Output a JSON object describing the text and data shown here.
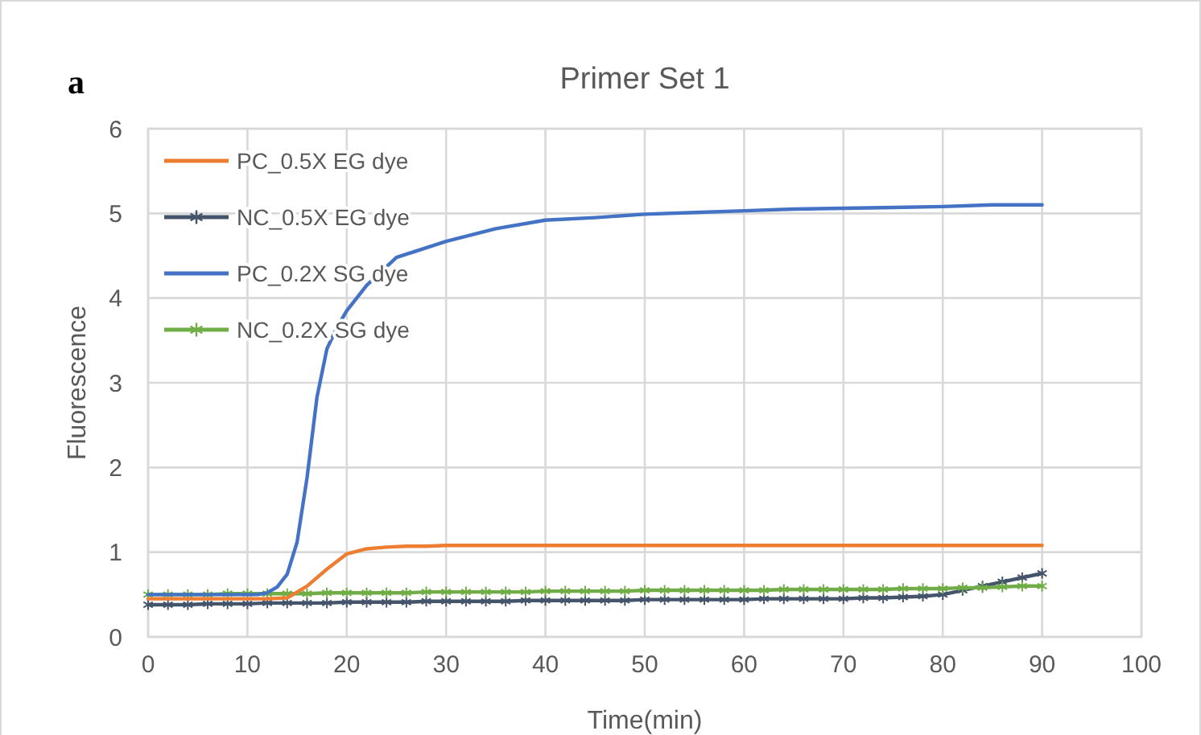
{
  "chart_data": {
    "type": "line",
    "title": "Primer Set 1",
    "xlabel": "Time(min)",
    "ylabel": "Fluorescence",
    "annotations": [
      "a"
    ],
    "x": [
      0,
      2,
      4,
      6,
      8,
      10,
      12,
      14,
      16,
      18,
      20,
      22,
      24,
      26,
      28,
      30,
      32,
      34,
      36,
      38,
      40,
      42,
      44,
      46,
      48,
      50,
      52,
      54,
      56,
      58,
      60,
      62,
      64,
      66,
      68,
      70,
      72,
      74,
      76,
      78,
      80,
      82,
      84,
      86,
      88,
      90
    ],
    "series": [
      {
        "name": "PC_0.5X EG dye",
        "color": "#ed7d31",
        "marker": "none",
        "values": [
          0.45,
          0.45,
          0.45,
          0.45,
          0.45,
          0.45,
          0.45,
          0.46,
          0.6,
          0.8,
          0.98,
          1.04,
          1.06,
          1.07,
          1.07,
          1.08,
          1.08,
          1.08,
          1.08,
          1.08,
          1.08,
          1.08,
          1.08,
          1.08,
          1.08,
          1.08,
          1.08,
          1.08,
          1.08,
          1.08,
          1.08,
          1.08,
          1.08,
          1.08,
          1.08,
          1.08,
          1.08,
          1.08,
          1.08,
          1.08,
          1.08,
          1.08,
          1.08,
          1.08,
          1.08,
          1.08
        ]
      },
      {
        "name": "NC_0.5X EG dye",
        "color": "#44546a",
        "marker": "cross",
        "values": [
          0.38,
          0.38,
          0.38,
          0.39,
          0.39,
          0.39,
          0.4,
          0.4,
          0.4,
          0.4,
          0.41,
          0.41,
          0.41,
          0.41,
          0.42,
          0.42,
          0.42,
          0.42,
          0.42,
          0.43,
          0.43,
          0.43,
          0.43,
          0.43,
          0.43,
          0.44,
          0.44,
          0.44,
          0.44,
          0.44,
          0.44,
          0.45,
          0.45,
          0.45,
          0.45,
          0.45,
          0.46,
          0.46,
          0.47,
          0.48,
          0.5,
          0.55,
          0.6,
          0.65,
          0.7,
          0.75
        ]
      },
      {
        "name": "PC_0.2X SG dye",
        "color": "#4472c4",
        "marker": "none",
        "x": [
          0,
          2,
          4,
          6,
          8,
          10,
          11,
          12,
          13,
          14,
          15,
          16,
          17,
          18,
          19,
          20,
          22,
          25,
          30,
          35,
          40,
          45,
          50,
          55,
          60,
          65,
          70,
          75,
          80,
          85,
          90
        ],
        "values": [
          0.5,
          0.5,
          0.5,
          0.5,
          0.5,
          0.5,
          0.5,
          0.52,
          0.59,
          0.74,
          1.12,
          1.88,
          2.83,
          3.4,
          3.65,
          3.85,
          4.15,
          4.48,
          4.67,
          4.82,
          4.92,
          4.95,
          4.99,
          5.01,
          5.03,
          5.05,
          5.06,
          5.07,
          5.08,
          5.1,
          5.1
        ]
      },
      {
        "name": "NC_0.2X SG dye",
        "color": "#70ad47",
        "marker": "cross",
        "values": [
          0.5,
          0.5,
          0.5,
          0.5,
          0.51,
          0.51,
          0.51,
          0.51,
          0.51,
          0.52,
          0.52,
          0.52,
          0.52,
          0.52,
          0.53,
          0.53,
          0.53,
          0.53,
          0.53,
          0.53,
          0.54,
          0.54,
          0.54,
          0.54,
          0.54,
          0.55,
          0.55,
          0.55,
          0.55,
          0.55,
          0.55,
          0.55,
          0.56,
          0.56,
          0.56,
          0.56,
          0.56,
          0.56,
          0.57,
          0.57,
          0.57,
          0.58,
          0.58,
          0.59,
          0.6,
          0.6
        ]
      }
    ],
    "xlim": [
      0,
      100
    ],
    "xticks": [
      0,
      10,
      20,
      30,
      40,
      50,
      60,
      70,
      80,
      90,
      100
    ],
    "ylim": [
      0,
      6
    ],
    "yticks": [
      0,
      1,
      2,
      3,
      4,
      5,
      6
    ],
    "grid": true,
    "legend": "top left"
  }
}
